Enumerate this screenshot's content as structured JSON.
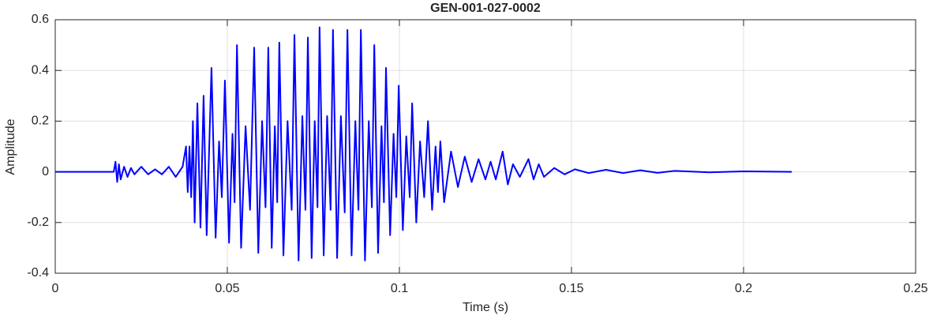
{
  "chart_data": {
    "type": "line",
    "title": "GEN-001-027-0002",
    "xlabel": "Time (s)",
    "ylabel": "Amplitude",
    "color": "#0000ff",
    "grid": true,
    "xlim": [
      0,
      0.25
    ],
    "xticks": [
      0,
      0.05,
      0.1,
      0.15,
      0.2,
      0.25
    ],
    "ylim": [
      -0.4,
      0.6
    ],
    "yticks": [
      -0.4,
      -0.2,
      0,
      0.2,
      0.4,
      0.6
    ],
    "x": [
      0,
      0.017,
      0.0175,
      0.018,
      0.0185,
      0.019,
      0.02,
      0.021,
      0.022,
      0.023,
      0.025,
      0.027,
      0.029,
      0.031,
      0.033,
      0.035,
      0.037,
      0.038,
      0.0385,
      0.039,
      0.0395,
      0.04,
      0.0405,
      0.0413,
      0.0422,
      0.0431,
      0.044,
      0.0454,
      0.0466,
      0.0476,
      0.0484,
      0.0493,
      0.0505,
      0.0515,
      0.0521,
      0.0528,
      0.054,
      0.0553,
      0.0566,
      0.0578,
      0.059,
      0.0601,
      0.0611,
      0.0619,
      0.0629,
      0.0638,
      0.0645,
      0.0651,
      0.0663,
      0.0675,
      0.0687,
      0.0695,
      0.0707,
      0.0718,
      0.0727,
      0.0734,
      0.0745,
      0.0754,
      0.0762,
      0.0768,
      0.078,
      0.079,
      0.08,
      0.0807,
      0.0819,
      0.083,
      0.0841,
      0.0849,
      0.0861,
      0.0872,
      0.0881,
      0.0888,
      0.09,
      0.0911,
      0.092,
      0.0927,
      0.0938,
      0.0948,
      0.0955,
      0.0961,
      0.0973,
      0.0983,
      0.0991,
      0.0998,
      0.101,
      0.102,
      0.103,
      0.1037,
      0.1049,
      0.106,
      0.1072,
      0.1083,
      0.1095,
      0.1105,
      0.1112,
      0.1119,
      0.113,
      0.115,
      0.117,
      0.119,
      0.121,
      0.123,
      0.125,
      0.1265,
      0.128,
      0.13,
      0.1315,
      0.133,
      0.135,
      0.1375,
      0.139,
      0.1405,
      0.142,
      0.145,
      0.148,
      0.151,
      0.155,
      0.16,
      0.165,
      0.17,
      0.175,
      0.18,
      0.19,
      0.2,
      0.214
    ],
    "values": [
      0,
      0,
      0.04,
      -0.04,
      0.03,
      -0.03,
      0.02,
      -0.02,
      0.015,
      -0.01,
      0.02,
      -0.01,
      0.01,
      -0.01,
      0.02,
      -0.02,
      0.02,
      0.1,
      -0.08,
      0.1,
      -0.1,
      0.2,
      -0.2,
      0.27,
      -0.22,
      0.3,
      -0.25,
      0.41,
      -0.26,
      0.12,
      -0.1,
      0.36,
      -0.28,
      0.15,
      -0.12,
      0.5,
      -0.3,
      0.18,
      -0.15,
      0.49,
      -0.32,
      0.2,
      -0.14,
      0.49,
      -0.3,
      0.18,
      -0.12,
      0.51,
      -0.33,
      0.2,
      -0.15,
      0.54,
      -0.35,
      0.22,
      -0.15,
      0.53,
      -0.34,
      0.2,
      -0.14,
      0.57,
      -0.33,
      0.22,
      -0.15,
      0.56,
      -0.34,
      0.22,
      -0.16,
      0.56,
      -0.33,
      0.2,
      -0.15,
      0.56,
      -0.35,
      0.2,
      -0.14,
      0.5,
      -0.32,
      0.18,
      -0.12,
      0.41,
      -0.25,
      0.15,
      -0.1,
      0.34,
      -0.23,
      0.14,
      -0.1,
      0.27,
      -0.2,
      0.12,
      -0.1,
      0.2,
      -0.15,
      0.1,
      -0.08,
      0.12,
      -0.12,
      0.08,
      -0.06,
      0.06,
      -0.04,
      0.05,
      -0.03,
      0.04,
      -0.03,
      0.08,
      -0.05,
      0.03,
      -0.02,
      0.05,
      -0.03,
      0.03,
      -0.02,
      0.015,
      -0.01,
      0.01,
      -0.005,
      0.008,
      -0.005,
      0.006,
      -0.004,
      0.004,
      -0.002,
      0.002,
      0
    ]
  }
}
